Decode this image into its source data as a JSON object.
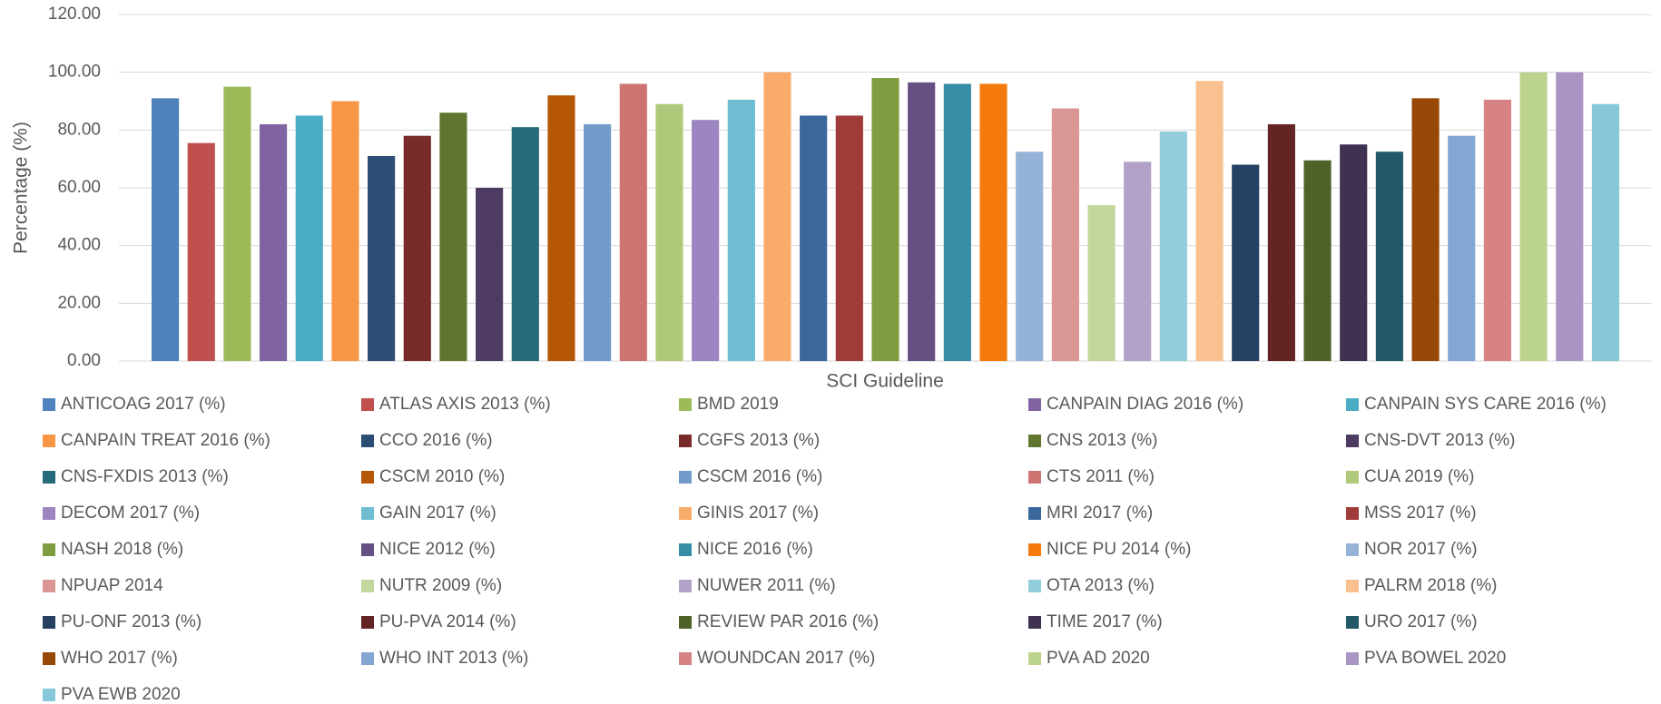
{
  "chart_data": {
    "type": "bar",
    "y_label": "Percentage (%)",
    "x_label": "SCI Guideline",
    "categories": [
      null
    ],
    "ylim": [
      0,
      120
    ],
    "yticks": [
      {
        "value": 0,
        "label": "0.00"
      },
      {
        "value": 20,
        "label": "20.00"
      },
      {
        "value": 40,
        "label": "40.00"
      },
      {
        "value": 60,
        "label": "60.00"
      },
      {
        "value": 80,
        "label": "80.00"
      },
      {
        "value": 100,
        "label": "100.00"
      },
      {
        "value": 120,
        "label": "120.00"
      }
    ],
    "grid": true,
    "legend": "bottom",
    "series": [
      {
        "name": "ANTICOAG 2017 (%)",
        "color": "#4f81bd",
        "values": [
          91
        ]
      },
      {
        "name": "ATLAS AXIS 2013 (%)",
        "color": "#c0504d",
        "values": [
          75.5
        ]
      },
      {
        "name": "BMD 2019",
        "color": "#9bbb59",
        "values": [
          95
        ]
      },
      {
        "name": "CANPAIN DIAG 2016 (%)",
        "color": "#8064a2",
        "values": [
          82
        ]
      },
      {
        "name": "CANPAIN SYS CARE 2016 (%)",
        "color": "#4bacc6",
        "values": [
          85
        ]
      },
      {
        "name": "CANPAIN TREAT 2016 (%)",
        "color": "#f79646",
        "values": [
          90
        ]
      },
      {
        "name": "CCO 2016 (%)",
        "color": "#2c4d75",
        "values": [
          71
        ]
      },
      {
        "name": "CGFS 2013 (%)",
        "color": "#772c2a",
        "values": [
          78
        ]
      },
      {
        "name": "CNS 2013 (%)",
        "color": "#5f7530",
        "values": [
          86
        ]
      },
      {
        "name": "CNS-DVT 2013 (%)",
        "color": "#4d3b62",
        "values": [
          60
        ]
      },
      {
        "name": "CNS-FXDIS 2013 (%)",
        "color": "#276a7c",
        "values": [
          81
        ]
      },
      {
        "name": "CSCM 2010 (%)",
        "color": "#b65708",
        "values": [
          92
        ]
      },
      {
        "name": "CSCM 2016 (%)",
        "color": "#729aca",
        "values": [
          82
        ]
      },
      {
        "name": "CTS 2011 (%)",
        "color": "#cd7371",
        "values": [
          96
        ]
      },
      {
        "name": "CUA 2019 (%)",
        "color": "#afc97a",
        "values": [
          89
        ]
      },
      {
        "name": "DECOM 2017 (%)",
        "color": "#9c85c0",
        "values": [
          83.5
        ]
      },
      {
        "name": "GAIN 2017 (%)",
        "color": "#6fbdd3",
        "values": [
          90.5
        ]
      },
      {
        "name": "GINIS 2017 (%)",
        "color": "#f9ab6b",
        "values": [
          100
        ]
      },
      {
        "name": "MRI 2017 (%)",
        "color": "#3a679c",
        "values": [
          85
        ]
      },
      {
        "name": "MSS 2017 (%)",
        "color": "#9f3b38",
        "values": [
          85
        ]
      },
      {
        "name": "NASH 2018  (%)",
        "color": "#7e9c40",
        "values": [
          98
        ]
      },
      {
        "name": "NICE 2012  (%)",
        "color": "#664f83",
        "values": [
          96.5
        ]
      },
      {
        "name": "NICE 2016  (%)",
        "color": "#358ea6",
        "values": [
          96
        ]
      },
      {
        "name": "NICE PU 2014  (%)",
        "color": "#f47a0e",
        "values": [
          96
        ]
      },
      {
        "name": "NOR 2017  (%)",
        "color": "#95b3d7",
        "values": [
          72.5
        ]
      },
      {
        "name": "NPUAP 2014",
        "color": "#d99694",
        "values": [
          87.5
        ]
      },
      {
        "name": "NUTR 2009  (%)",
        "color": "#c3d69b",
        "values": [
          54
        ]
      },
      {
        "name": "NUWER 2011 (%)",
        "color": "#b2a2c7",
        "values": [
          69
        ]
      },
      {
        "name": "OTA 2013 (%)",
        "color": "#92cddc",
        "values": [
          79.5
        ]
      },
      {
        "name": "PALRM 2018 (%)",
        "color": "#fac090",
        "values": [
          97
        ]
      },
      {
        "name": "PU-ONF 2013 (%)",
        "color": "#254061",
        "values": [
          68
        ]
      },
      {
        "name": "PU-PVA 2014 (%)",
        "color": "#632523",
        "values": [
          82
        ]
      },
      {
        "name": "REVIEW PAR 2016 (%)",
        "color": "#4f6228",
        "values": [
          69.5
        ]
      },
      {
        "name": "TIME 2017 (%)",
        "color": "#3f3151",
        "values": [
          75
        ]
      },
      {
        "name": "URO 2017 (%)",
        "color": "#215968",
        "values": [
          72.5
        ]
      },
      {
        "name": "WHO 2017 (%)",
        "color": "#974806",
        "values": [
          91
        ]
      },
      {
        "name": "WHO INT 2013 (%)",
        "color": "#84a6d3",
        "values": [
          78
        ]
      },
      {
        "name": "WOUNDCAN 2017 (%)",
        "color": "#d88383",
        "values": [
          90.5
        ]
      },
      {
        "name": "PVA AD 2020",
        "color": "#bcd38e",
        "values": [
          100
        ]
      },
      {
        "name": "PVA BOWEL 2020",
        "color": "#a994c4",
        "values": [
          100
        ]
      },
      {
        "name": "PVA EWB 2020",
        "color": "#87c8d8",
        "values": [
          89
        ]
      }
    ]
  }
}
